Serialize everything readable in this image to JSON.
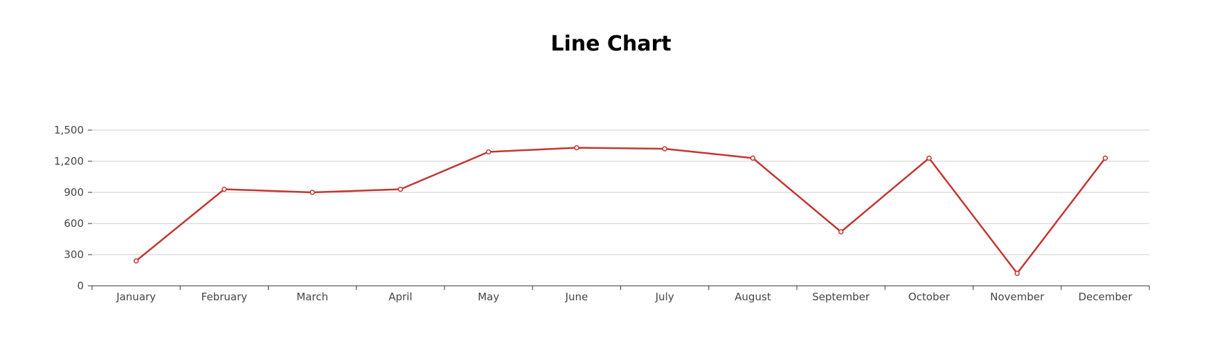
{
  "chart_data": {
    "type": "line",
    "title": "Line Chart",
    "xlabel": "",
    "ylabel": "",
    "categories": [
      "January",
      "February",
      "March",
      "April",
      "May",
      "June",
      "July",
      "August",
      "September",
      "October",
      "November",
      "December"
    ],
    "series": [
      {
        "values": [
          240,
          930,
          900,
          930,
          1290,
          1330,
          1320,
          1230,
          520,
          1230,
          120,
          1230
        ]
      }
    ],
    "ylim": [
      0,
      1500
    ],
    "yticks": [
      "0",
      "300",
      "600",
      "900",
      "1,200",
      "1,500"
    ],
    "ytick_values": [
      0,
      300,
      600,
      900,
      1200,
      1500
    ],
    "grid": true,
    "colors": {
      "line": "#c23531",
      "grid": "#cccccc",
      "axis": "#333333",
      "background": "#ffffff"
    }
  }
}
